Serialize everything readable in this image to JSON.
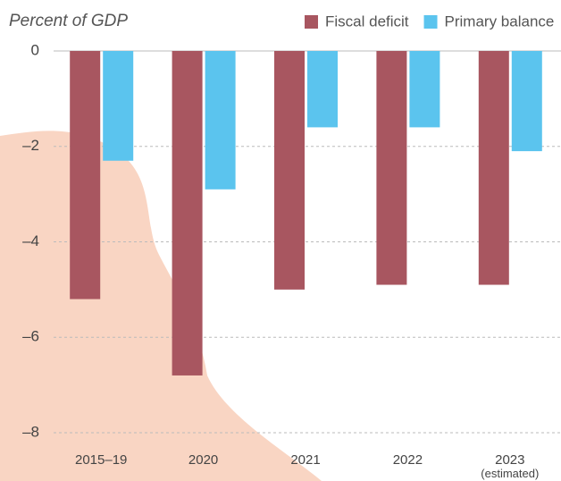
{
  "chart_data": {
    "type": "bar",
    "title": "Percent of GDP",
    "categories": [
      "2015–19",
      "2020",
      "2021",
      "2022",
      "2023\n(estimated)"
    ],
    "series": [
      {
        "name": "Fiscal deficit",
        "color": "#a85660",
        "values": [
          -5.2,
          -6.8,
          -5.0,
          -4.9,
          -4.9
        ]
      },
      {
        "name": "Primary balance",
        "color": "#5bc4ee",
        "values": [
          -2.3,
          -2.9,
          -1.6,
          -1.6,
          -2.1
        ]
      }
    ],
    "ylim": [
      -8,
      0
    ],
    "yticks": [
      0,
      {
        "value": -2,
        "label": "–2"
      },
      {
        "value": -4,
        "label": "–4"
      },
      {
        "value": -6,
        "label": "–6"
      },
      {
        "value": -8,
        "label": "–8"
      }
    ],
    "grid": true
  }
}
